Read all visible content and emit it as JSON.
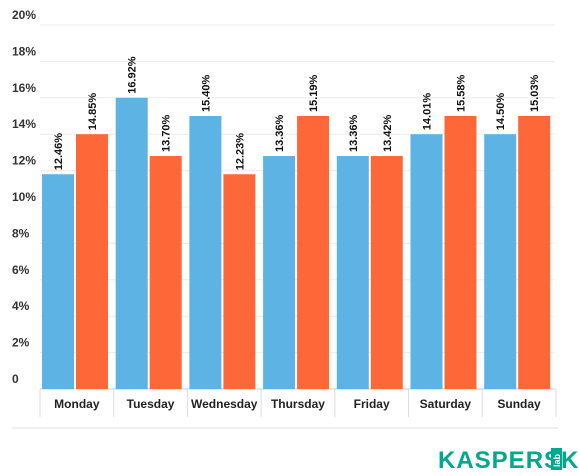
{
  "chart_data": {
    "type": "bar",
    "categories": [
      "Monday",
      "Tuesday",
      "Wednesday",
      "Thursday",
      "Friday",
      "Saturday",
      "Sunday"
    ],
    "series": [
      {
        "color": "#5CB3E4",
        "values": [
          12.46,
          16.92,
          15.4,
          13.36,
          13.36,
          14.01,
          14.5
        ],
        "bar_heights": [
          11.8,
          16.0,
          15.0,
          12.8,
          12.8,
          14.0,
          14.0
        ],
        "labels": [
          "12.46%",
          "16.92%",
          "15.40%",
          "13.36%",
          "13.36%",
          "14.01%",
          "14.50%"
        ]
      },
      {
        "color": "#FE6839",
        "values": [
          14.85,
          13.7,
          12.23,
          15.19,
          13.42,
          15.58,
          15.03
        ],
        "bar_heights": [
          14.0,
          12.8,
          11.8,
          15.0,
          12.8,
          15.0,
          15.0
        ],
        "labels": [
          "14.85%",
          "13.70%",
          "12.23%",
          "15.19%",
          "13.42%",
          "15.58%",
          "15.03%"
        ]
      }
    ],
    "y_ticks": [
      "0",
      "2%",
      "4%",
      "6%",
      "8%",
      "10%",
      "12%",
      "14%",
      "16%",
      "18%",
      "20%"
    ],
    "ylim": [
      0,
      20
    ],
    "grid": true,
    "legend": "none"
  },
  "logo": {
    "text": "KASPERSKY",
    "sub": "lab",
    "color": "#00A88E"
  }
}
